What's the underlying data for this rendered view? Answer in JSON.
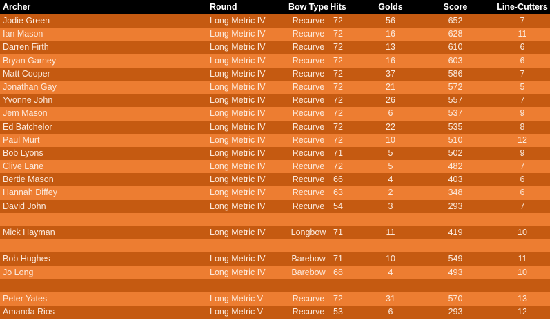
{
  "colors": {
    "header": "#000000",
    "row_dark": "#c55a11",
    "row_light": "#ed7d31",
    "text": "#fbe9dc"
  },
  "columns": [
    "Archer",
    "Round",
    "Bow Type",
    "Hits",
    "Golds",
    "Score",
    "Line-Cutters"
  ],
  "rows": [
    [
      "Jodie Green",
      "Long Metric IV",
      "Recurve",
      "72",
      "56",
      "652",
      "7"
    ],
    [
      "Ian Mason",
      "Long Metric IV",
      "Recurve",
      "72",
      "16",
      "628",
      "11"
    ],
    [
      "Darren Firth",
      "Long Metric IV",
      "Recurve",
      "72",
      "13",
      "610",
      "6"
    ],
    [
      "Bryan Garney",
      "Long Metric IV",
      "Recurve",
      "72",
      "16",
      "603",
      "6"
    ],
    [
      "Matt Cooper",
      "Long Metric IV",
      "Recurve",
      "72",
      "37",
      "586",
      "7"
    ],
    [
      "Jonathan Gay",
      "Long Metric IV",
      "Recurve",
      "72",
      "21",
      "572",
      "5"
    ],
    [
      "Yvonne John",
      "Long Metric IV",
      "Recurve",
      "72",
      "26",
      "557",
      "7"
    ],
    [
      "Jem Mason",
      "Long Metric IV",
      "Recurve",
      "72",
      "6",
      "537",
      "9"
    ],
    [
      "Ed Batchelor",
      "Long Metric IV",
      "Recurve",
      "72",
      "22",
      "535",
      "8"
    ],
    [
      "Paul Murt",
      "Long Metric IV",
      "Recurve",
      "72",
      "10",
      "510",
      "12"
    ],
    [
      "Bob Lyons",
      "Long Metric IV",
      "Recurve",
      "71",
      "5",
      "502",
      "9"
    ],
    [
      "Clive Lane",
      "Long Metric IV",
      "Recurve",
      "72",
      "5",
      "482",
      "7"
    ],
    [
      "Bertie Mason",
      "Long Metric IV",
      "Recurve",
      "66",
      "4",
      "403",
      "6"
    ],
    [
      "Hannah Diffey",
      "Long Metric IV",
      "Recurve",
      "63",
      "2",
      "348",
      "6"
    ],
    [
      "David John",
      "Long Metric IV",
      "Recurve",
      "54",
      "3",
      "293",
      "7"
    ],
    [
      "",
      "",
      "",
      "",
      "",
      "",
      ""
    ],
    [
      "Mick Hayman",
      "Long Metric IV",
      "Longbow",
      "71",
      "11",
      "419",
      "10"
    ],
    [
      "",
      "",
      "",
      "",
      "",
      "",
      ""
    ],
    [
      "Bob Hughes",
      "Long Metric IV",
      "Barebow",
      "71",
      "10",
      "549",
      "11"
    ],
    [
      "Jo Long",
      "Long Metric IV",
      "Barebow",
      "68",
      "4",
      "493",
      "10"
    ],
    [
      "",
      "",
      "",
      "",
      "",
      "",
      ""
    ],
    [
      "Peter Yates",
      "Long Metric V",
      "Recurve",
      "72",
      "31",
      "570",
      "13"
    ],
    [
      "Amanda Rios",
      "Long Metric V",
      "Recurve",
      "53",
      "6",
      "293",
      "12"
    ]
  ]
}
